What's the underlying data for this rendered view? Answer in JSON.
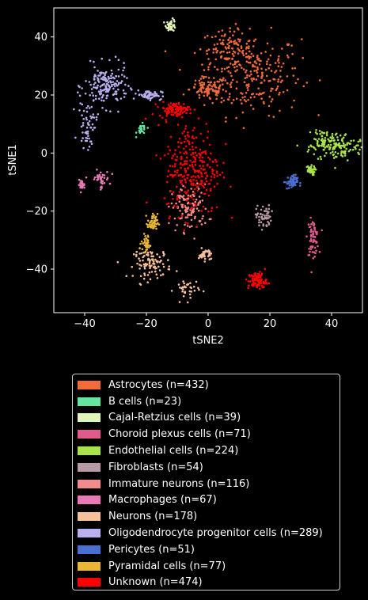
{
  "chart_data": {
    "type": "scatter",
    "title": "",
    "xlabel": "tSNE2",
    "ylabel": "tSNE1",
    "xlim": [
      -50,
      50
    ],
    "ylim": [
      -55,
      50
    ],
    "xticks": [
      -40,
      -20,
      0,
      20,
      40
    ],
    "yticks": [
      -40,
      -20,
      0,
      20,
      40
    ],
    "xtick_labels": [
      "−40",
      "−20",
      "0",
      "20",
      "40"
    ],
    "ytick_labels": [
      "−40",
      "−20",
      "0",
      "20",
      "40"
    ],
    "grid": false,
    "legend_placement": "below",
    "series": [
      {
        "name": "Astrocytes (n=432)",
        "color": "#f26b38",
        "n": 432,
        "clusters": [
          {
            "cx": 14,
            "cy": 27,
            "sx": 8,
            "sy": 7
          },
          {
            "cx": 6,
            "cy": 36,
            "sx": 4,
            "sy": 3
          },
          {
            "cx": 0,
            "cy": 22,
            "sx": 3,
            "sy": 2
          }
        ]
      },
      {
        "name": "B cells (n=23)",
        "color": "#63e6a0",
        "n": 23,
        "clusters": [
          {
            "cx": -21.5,
            "cy": 8,
            "sx": 0.8,
            "sy": 1.0
          }
        ]
      },
      {
        "name": "Cajal-Retzius cells (n=39)",
        "color": "#e0f5b8",
        "n": 39,
        "clusters": [
          {
            "cx": -12,
            "cy": 44,
            "sx": 0.8,
            "sy": 1.0
          }
        ]
      },
      {
        "name": "Choroid plexus cells (n=71)",
        "color": "#e05a8c",
        "n": 71,
        "clusters": [
          {
            "cx": 34,
            "cy": -29,
            "sx": 0.9,
            "sy": 3.0
          }
        ]
      },
      {
        "name": "Endothelial cells (n=224)",
        "color": "#a9e34b",
        "n": 224,
        "clusters": [
          {
            "cx": 42,
            "cy": 2,
            "sx": 4.5,
            "sy": 2.5
          },
          {
            "cx": 37,
            "cy": 5,
            "sx": 1.5,
            "sy": 2
          },
          {
            "cx": 33,
            "cy": -6,
            "sx": 0.8,
            "sy": 0.8
          }
        ]
      },
      {
        "name": "Fibroblasts (n=54)",
        "color": "#b89aa6",
        "n": 54,
        "clusters": [
          {
            "cx": 18,
            "cy": -22,
            "sx": 1.2,
            "sy": 2.0
          }
        ]
      },
      {
        "name": "Immature neurons (n=116)",
        "color": "#f08c8c",
        "n": 116,
        "clusters": [
          {
            "cx": -6,
            "cy": -19,
            "sx": 3.0,
            "sy": 4.0
          }
        ]
      },
      {
        "name": "Macrophages (n=67)",
        "color": "#e67ab5",
        "n": 67,
        "clusters": [
          {
            "cx": -35,
            "cy": -9,
            "sx": 1.5,
            "sy": 1.5
          },
          {
            "cx": -41,
            "cy": -11,
            "sx": 0.5,
            "sy": 0.8
          }
        ]
      },
      {
        "name": "Neurons (n=178)",
        "color": "#f5c09a",
        "n": 178,
        "clusters": [
          {
            "cx": -18,
            "cy": -38,
            "sx": 3.0,
            "sy": 2.5
          },
          {
            "cx": -7,
            "cy": -47,
            "sx": 2.0,
            "sy": 2.0
          },
          {
            "cx": -1,
            "cy": -35,
            "sx": 1.0,
            "sy": 1.0
          }
        ]
      },
      {
        "name": "Oligodendrocyte progenitor cells (n=289)",
        "color": "#b8b0f0",
        "n": 289,
        "clusters": [
          {
            "cx": -33,
            "cy": 23,
            "sx": 3.5,
            "sy": 3.5
          },
          {
            "cx": -39,
            "cy": 10,
            "sx": 1.5,
            "sy": 4
          },
          {
            "cx": -19,
            "cy": 20,
            "sx": 2.0,
            "sy": 0.8
          }
        ]
      },
      {
        "name": "Pericytes (n=51)",
        "color": "#4a6fd0",
        "n": 51,
        "clusters": [
          {
            "cx": 27,
            "cy": -10,
            "sx": 1.0,
            "sy": 1.2
          }
        ]
      },
      {
        "name": "Pyramidal cells (n=77)",
        "color": "#e9b735",
        "n": 77,
        "clusters": [
          {
            "cx": -18,
            "cy": -24,
            "sx": 0.8,
            "sy": 1.5
          },
          {
            "cx": -20,
            "cy": -31,
            "sx": 0.8,
            "sy": 1.5
          }
        ]
      },
      {
        "name": "Unknown (n=474)",
        "color": "#ff0000",
        "n": 474,
        "clusters": [
          {
            "cx": -5,
            "cy": -5,
            "sx": 4.5,
            "sy": 8
          },
          {
            "cx": -11,
            "cy": 15,
            "sx": 2.5,
            "sy": 1.2
          },
          {
            "cx": 16,
            "cy": -44,
            "sx": 1.5,
            "sy": 1.5
          }
        ]
      }
    ]
  }
}
